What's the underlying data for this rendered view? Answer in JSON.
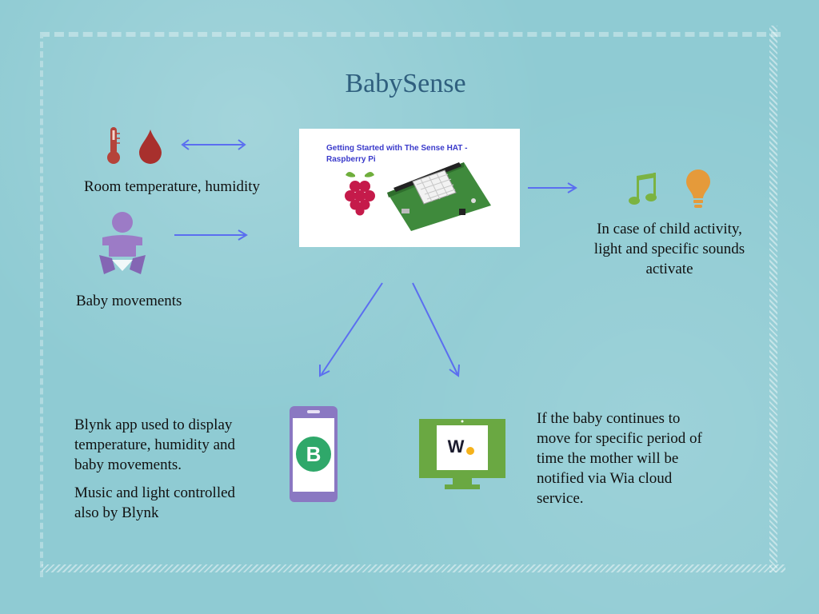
{
  "title": "BabySense",
  "board": {
    "caption_line1": "Getting Started with The Sense HAT -",
    "caption_line2": "Raspberry Pi"
  },
  "labels": {
    "room": "Room temperature, humidity",
    "baby": "Baby movements",
    "activity": [
      "In case of child activity,",
      "light and specific sounds",
      "activate"
    ],
    "blynk": [
      "Blynk app used to display",
      "temperature, humidity and",
      "baby movements."
    ],
    "blynk2": [
      "Music and light controlled",
      "also by Blynk"
    ],
    "wia": [
      "If the baby continues to",
      "move for specific period of",
      "time the mother will be",
      "notified via Wia cloud",
      "service."
    ]
  },
  "icons": {
    "blynk_letter": "B",
    "wia_letter": "W"
  },
  "colors": {
    "background": "#8fcbd3",
    "title": "#2f5f7e",
    "arrow": "#5b6ef0",
    "thermometer": "#b5433a",
    "drop": "#a8302d",
    "baby": "#9c7bc6",
    "note": "#7bb342",
    "bulb": "#e59a3a",
    "phone": "#8a78c2",
    "blynk": "#2fa86a",
    "monitor": "#6aa842",
    "wia_dot": "#f5b21b"
  }
}
